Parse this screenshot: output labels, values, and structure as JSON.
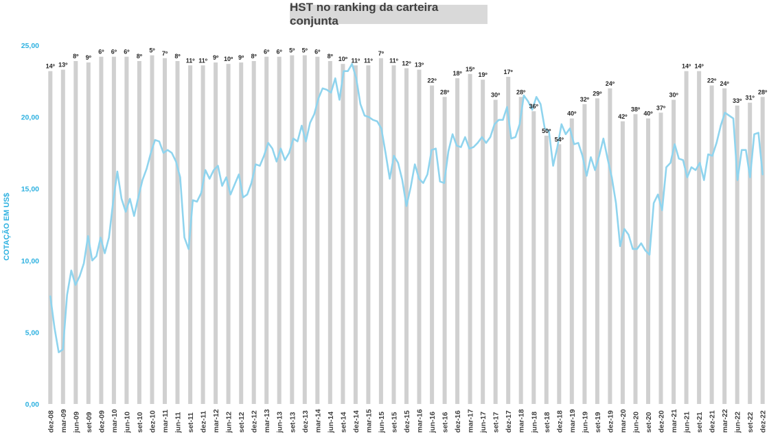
{
  "chart_data": {
    "type": "bar+line",
    "title": "HST no ranking da carteira conjunta",
    "ylabel": "COTAÇÃO EM US$",
    "ylim": [
      0,
      25
    ],
    "yticks": [
      "0,00",
      "5,00",
      "10,00",
      "15,00",
      "20,00",
      "25,00"
    ],
    "grid": false,
    "legend": "none",
    "colors": {
      "bars": "#d0d0d0",
      "line": "#8fd4ee",
      "yaxis_text": "#2eb1e0",
      "title_bg": "#d9d9d9"
    },
    "x_labels": [
      "dez-08",
      "mar-09",
      "jun-09",
      "set-09",
      "dez-09",
      "mar-10",
      "jun-10",
      "set-10",
      "dez-10",
      "mar-11",
      "jun-11",
      "set-11",
      "dez-11",
      "mar-12",
      "jun-12",
      "set-12",
      "dez-12",
      "mar-13",
      "jun-13",
      "set-13",
      "dez-13",
      "mar-14",
      "jun-14",
      "set-14",
      "dez-14",
      "mar-15",
      "jun-15",
      "set-15",
      "dez-15",
      "mar-16",
      "jun-16",
      "set-16",
      "dez-16",
      "mar-17",
      "jun-17",
      "set-17",
      "dez-17",
      "mar-18",
      "jun-18",
      "set-18",
      "dez-18",
      "mar-19",
      "jun-19",
      "set-19",
      "dez-19",
      "mar-20",
      "jun-20",
      "set-20",
      "dez-20",
      "mar-21",
      "jun-21",
      "set-21",
      "dez-21",
      "mar-22",
      "jun-22",
      "set-22",
      "dez-22"
    ],
    "ranking_bars": {
      "labels": [
        "14º",
        "13º",
        "8º",
        "9º",
        "6º",
        "6º",
        "6º",
        "8º",
        "5º",
        "7º",
        "8º",
        "11º",
        "11º",
        "9º",
        "10º",
        "9º",
        "8º",
        "6º",
        "6º",
        "5º",
        "5º",
        "6º",
        "8º",
        "10º",
        "11º",
        "11º",
        "7º",
        "11º",
        "12º",
        "13º",
        "22º",
        "28º",
        "18º",
        "15º",
        "19º",
        "30º",
        "17º",
        "28º",
        "36º",
        "50º",
        "54º",
        "40º",
        "32º",
        "29º",
        "24º",
        "42º",
        "38º",
        "40º",
        "37º",
        "30º",
        "14º",
        "14º",
        "22º",
        "24º",
        "33º",
        "31º",
        "28º"
      ],
      "heights": [
        23.2,
        23.3,
        23.9,
        23.8,
        24.2,
        24.2,
        24.2,
        23.9,
        24.3,
        24.1,
        23.9,
        23.6,
        23.6,
        23.8,
        23.7,
        23.8,
        23.9,
        24.2,
        24.2,
        24.3,
        24.3,
        24.2,
        23.9,
        23.7,
        23.6,
        23.6,
        24.1,
        23.6,
        23.4,
        23.3,
        22.2,
        21.4,
        22.7,
        23.0,
        22.6,
        21.2,
        22.8,
        21.4,
        20.4,
        18.7,
        18.1,
        19.9,
        20.9,
        21.3,
        22.0,
        19.7,
        20.2,
        19.9,
        20.3,
        21.2,
        23.2,
        23.2,
        22.2,
        22.0,
        20.8,
        21.0,
        21.4
      ]
    },
    "series": [
      {
        "values": [
          7.5,
          5.3,
          3.6,
          3.8,
          7.6,
          9.3,
          8.3,
          8.9,
          9.8,
          11.7,
          10.0,
          10.3,
          11.6,
          10.5,
          11.6,
          14.1,
          16.2,
          14.3,
          13.4,
          14.3,
          13.1,
          14.4,
          15.6,
          16.4,
          17.5,
          18.4,
          18.3,
          17.5,
          17.7,
          17.5,
          16.9,
          15.8,
          11.6,
          10.8,
          14.2,
          14.1,
          14.7,
          16.3,
          15.7,
          16.3,
          16.6,
          15.2,
          15.8,
          14.6,
          15.3,
          16.0,
          14.4,
          14.6,
          15.4,
          16.7,
          16.6,
          17.3,
          18.2,
          17.8,
          16.9,
          17.8,
          17.0,
          17.5,
          18.5,
          18.3,
          19.4,
          18.3,
          19.6,
          20.2,
          21.3,
          22.0,
          21.9,
          21.7,
          22.7,
          21.2,
          23.2,
          23.2,
          23.7,
          22.7,
          20.9,
          20.1,
          20.0,
          19.8,
          19.7,
          19.2,
          17.5,
          15.7,
          17.3,
          16.8,
          15.6,
          13.8,
          15.1,
          16.7,
          15.7,
          15.4,
          16.0,
          17.7,
          17.8,
          15.5,
          15.4,
          17.6,
          18.8,
          18.0,
          17.9,
          18.6,
          17.8,
          17.9,
          18.2,
          18.6,
          18.2,
          18.6,
          19.5,
          19.8,
          19.8,
          20.7,
          18.5,
          18.6,
          19.5,
          21.5,
          21.1,
          20.5,
          21.4,
          20.9,
          19.2,
          19.0,
          16.6,
          17.9,
          19.5,
          18.8,
          19.2,
          18.1,
          18.2,
          17.3,
          15.9,
          17.2,
          16.3,
          17.3,
          18.5,
          17.1,
          15.8,
          14.0,
          11.0,
          12.2,
          11.8,
          10.8,
          10.8,
          11.2,
          10.7,
          10.4,
          14.0,
          14.6,
          13.5,
          16.5,
          16.8,
          18.1,
          17.1,
          17.0,
          15.8,
          16.5,
          16.3,
          16.8,
          15.6,
          17.4,
          17.3,
          18.2,
          19.4,
          20.3,
          20.1,
          19.9,
          15.6,
          17.7,
          17.7,
          15.8,
          18.8,
          18.9,
          16.0
        ]
      }
    ]
  }
}
